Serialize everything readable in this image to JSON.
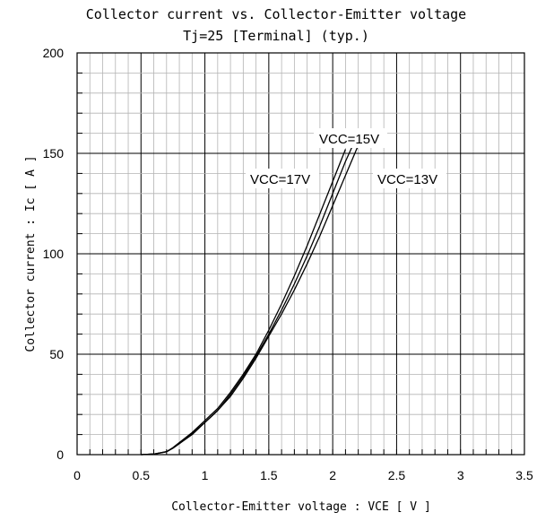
{
  "chart_data": {
    "type": "line",
    "title": "Collector current vs. Collector-Emitter voltage",
    "subtitle": "Tj=25   [Terminal] (typ.)",
    "xlabel": "Collector-Emitter voltage : VCE [ V ]",
    "ylabel": "Collector current : Ic [ A ]",
    "xlim": [
      0,
      3.5
    ],
    "ylim": [
      0,
      200
    ],
    "x_ticks": [
      "0",
      "0.5",
      "1",
      "1.5",
      "2",
      "2.5",
      "3",
      "3.5"
    ],
    "y_ticks": [
      "0",
      "50",
      "100",
      "150",
      "200"
    ],
    "grid": true,
    "series": [
      {
        "name": "VCC=17V",
        "x": [
          0.5,
          0.6,
          0.7,
          0.75,
          0.8,
          0.9,
          1.0,
          1.1,
          1.2,
          1.3,
          1.4,
          1.5,
          1.6,
          1.7,
          1.8,
          1.9,
          2.0,
          2.1
        ],
        "values": [
          0,
          0.3,
          1.5,
          3.5,
          6,
          11,
          17,
          23,
          31,
          40,
          50,
          62,
          75,
          89,
          104,
          120,
          136,
          152
        ]
      },
      {
        "name": "VCC=15V",
        "x": [
          0.5,
          0.6,
          0.7,
          0.75,
          0.8,
          0.9,
          1.0,
          1.1,
          1.2,
          1.3,
          1.4,
          1.5,
          1.6,
          1.7,
          1.8,
          1.9,
          2.0,
          2.1,
          2.15
        ],
        "values": [
          0,
          0.3,
          1.5,
          3.3,
          5.5,
          10.5,
          16,
          22,
          30,
          39,
          49,
          60,
          72,
          85,
          99,
          114,
          130,
          146,
          153
        ]
      },
      {
        "name": "VCC=13V",
        "x": [
          0.5,
          0.6,
          0.7,
          0.75,
          0.8,
          0.9,
          1.0,
          1.1,
          1.2,
          1.3,
          1.4,
          1.5,
          1.6,
          1.7,
          1.8,
          1.9,
          2.0,
          2.1,
          2.2
        ],
        "values": [
          0,
          0.3,
          1.4,
          3.2,
          5.5,
          10,
          16,
          22,
          29,
          38,
          48,
          59,
          70,
          82,
          95,
          109,
          124,
          139,
          154
        ]
      }
    ],
    "annotations": [
      {
        "text": "VCC=15V",
        "series": "VCC=15V"
      },
      {
        "text": "VCC=17V",
        "series": "VCC=17V"
      },
      {
        "text": "VCC=13V",
        "series": "VCC=13V"
      }
    ],
    "colors": {
      "line": "#000000",
      "grid": "#b4b4b4",
      "axis": "#000000"
    }
  }
}
